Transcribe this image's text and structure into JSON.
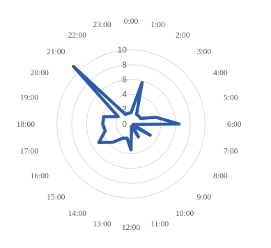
{
  "chart_data": {
    "type": "radar",
    "categories": [
      "0:00",
      "1:00",
      "2:00",
      "3:00",
      "4:00",
      "5:00",
      "6:00",
      "7:00",
      "8:00",
      "9:00",
      "10:00",
      "11:00",
      "12:00",
      "13:00",
      "14:00",
      "15:00",
      "16:00",
      "17:00",
      "18:00",
      "19:00",
      "20:00",
      "21:00",
      "22:00",
      "23:00"
    ],
    "series": [
      {
        "values": [
          1.5,
          5.8,
          1.5,
          1.5,
          1.5,
          3.5,
          6.5,
          0.3,
          3.0,
          0.3,
          2.0,
          0.3,
          3.5,
          2.0,
          2.2,
          3.5,
          5.0,
          3.6,
          3.8,
          3.8,
          2.0,
          11.0,
          1.5,
          1.5
        ]
      }
    ],
    "radial_ticks": [
      0,
      2,
      4,
      6,
      8,
      10
    ],
    "rmax": 11,
    "grid": true,
    "colors": {
      "series": "#2e5ca8",
      "grid": "#d9d9d9",
      "text": "#595959"
    }
  }
}
